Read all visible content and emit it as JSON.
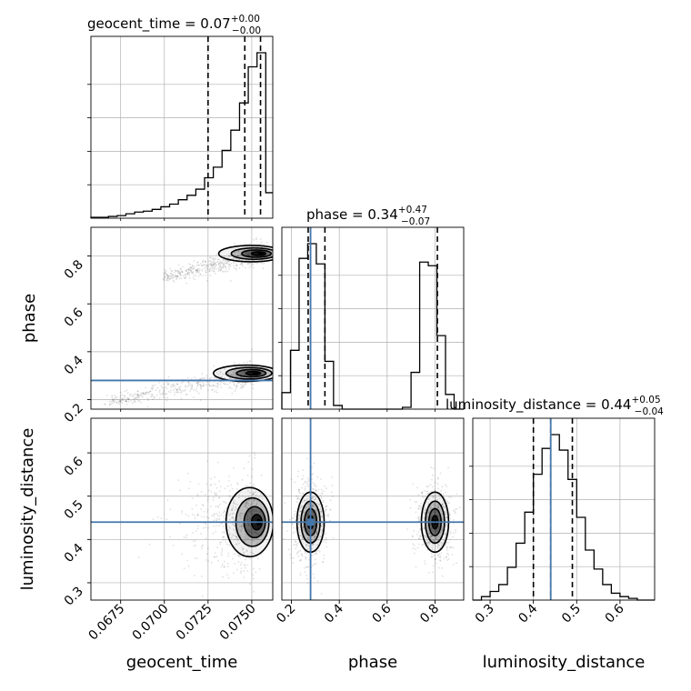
{
  "chart_data": {
    "type": "corner",
    "parameters": [
      {
        "name": "geocent_time",
        "axis_label": "geocent_time",
        "range": [
          0.0658,
          0.0762
        ],
        "ticks": [
          0.0675,
          0.07,
          0.0725,
          0.075
        ],
        "tick_labels": [
          "0.0675",
          "0.0700",
          "0.0725",
          "0.0750"
        ],
        "title_name": "geocent_time",
        "title_value": "0.07",
        "title_plus": "+0.00",
        "title_minus": "−0.00",
        "quantiles": [
          0.0725,
          0.0746,
          0.0755
        ],
        "truth": null
      },
      {
        "name": "phase",
        "axis_label": "phase",
        "range": [
          0.16,
          0.92
        ],
        "ticks": [
          0.2,
          0.4,
          0.6,
          0.8
        ],
        "tick_labels": [
          "0.2",
          "0.4",
          "0.6",
          "0.8"
        ],
        "title_name": "phase",
        "title_value": "0.34",
        "title_plus": "+0.47",
        "title_minus": "−0.07",
        "quantiles": [
          0.27,
          0.34,
          0.81
        ],
        "truth": 0.28
      },
      {
        "name": "luminosity_distance",
        "axis_label": "luminosity_distance",
        "range": [
          0.26,
          0.68
        ],
        "ticks": [
          0.3,
          0.4,
          0.5,
          0.6
        ],
        "tick_labels": [
          "0.3",
          "0.4",
          "0.5",
          "0.6"
        ],
        "title_name": "luminosity_distance",
        "title_value": "0.44",
        "title_plus": "+0.05",
        "title_minus": "−0.04",
        "quantiles": [
          0.4,
          0.44,
          0.49
        ],
        "truth": 0.44
      }
    ],
    "histograms": {
      "geocent_time": {
        "edges": [
          0.0658,
          0.0663,
          0.0668,
          0.0673,
          0.0678,
          0.0683,
          0.0688,
          0.0693,
          0.0698,
          0.0703,
          0.0708,
          0.0713,
          0.0718,
          0.0723,
          0.0728,
          0.0733,
          0.0738,
          0.0743,
          0.0748,
          0.0753,
          0.0758,
          0.0762
        ],
        "counts": [
          1,
          1,
          2,
          3,
          5,
          7,
          8,
          10,
          13,
          16,
          21,
          26,
          33,
          46,
          58,
          77,
          100,
          131,
          172,
          188,
          29
        ]
      },
      "phase": {
        "edges": [
          0.16,
          0.196,
          0.232,
          0.268,
          0.304,
          0.34,
          0.376,
          0.412,
          0.448,
          0.484,
          0.52,
          0.556,
          0.592,
          0.628,
          0.664,
          0.7,
          0.736,
          0.772,
          0.808,
          0.844,
          0.88,
          0.92
        ],
        "counts": [
          9,
          32,
          82,
          90,
          79,
          26,
          2,
          0,
          0,
          0,
          0,
          0,
          0,
          0,
          1,
          20,
          80,
          78,
          40,
          8,
          0
        ]
      },
      "luminosity_distance": {
        "edges": [
          0.26,
          0.28,
          0.3,
          0.32,
          0.34,
          0.36,
          0.38,
          0.4,
          0.42,
          0.44,
          0.46,
          0.48,
          0.5,
          0.52,
          0.54,
          0.56,
          0.58,
          0.6,
          0.62,
          0.64,
          0.66,
          0.68
        ],
        "counts": [
          0,
          2,
          5,
          9,
          19,
          33,
          51,
          73,
          88,
          96,
          87,
          70,
          48,
          29,
          18,
          9,
          4,
          2,
          1,
          0,
          0
        ]
      }
    },
    "joint_2d": [
      {
        "x": "geocent_time",
        "y": "phase",
        "clusters": [
          {
            "center": [
              0.0755,
              0.81
            ],
            "tail_to": [
              0.07,
              0.71
            ]
          },
          {
            "center": [
              0.0752,
              0.31
            ],
            "tail_to": [
              0.0668,
              0.19
            ]
          }
        ]
      },
      {
        "x": "geocent_time",
        "y": "luminosity_distance",
        "clusters": [
          {
            "center": [
              0.0754,
              0.44
            ],
            "spread_y": [
              0.33,
              0.56
            ]
          }
        ]
      },
      {
        "x": "phase",
        "y": "luminosity_distance",
        "clusters": [
          {
            "center": [
              0.28,
              0.44
            ],
            "spread_y": [
              0.34,
              0.54
            ]
          },
          {
            "center": [
              0.8,
              0.44
            ],
            "spread_y": [
              0.35,
              0.53
            ]
          }
        ]
      }
    ],
    "contour_levels": 4,
    "grid": true,
    "colors": {
      "truth": "#4477aa",
      "hist": "#000000",
      "grid": "#b0b0b0",
      "points": "#555555"
    }
  }
}
